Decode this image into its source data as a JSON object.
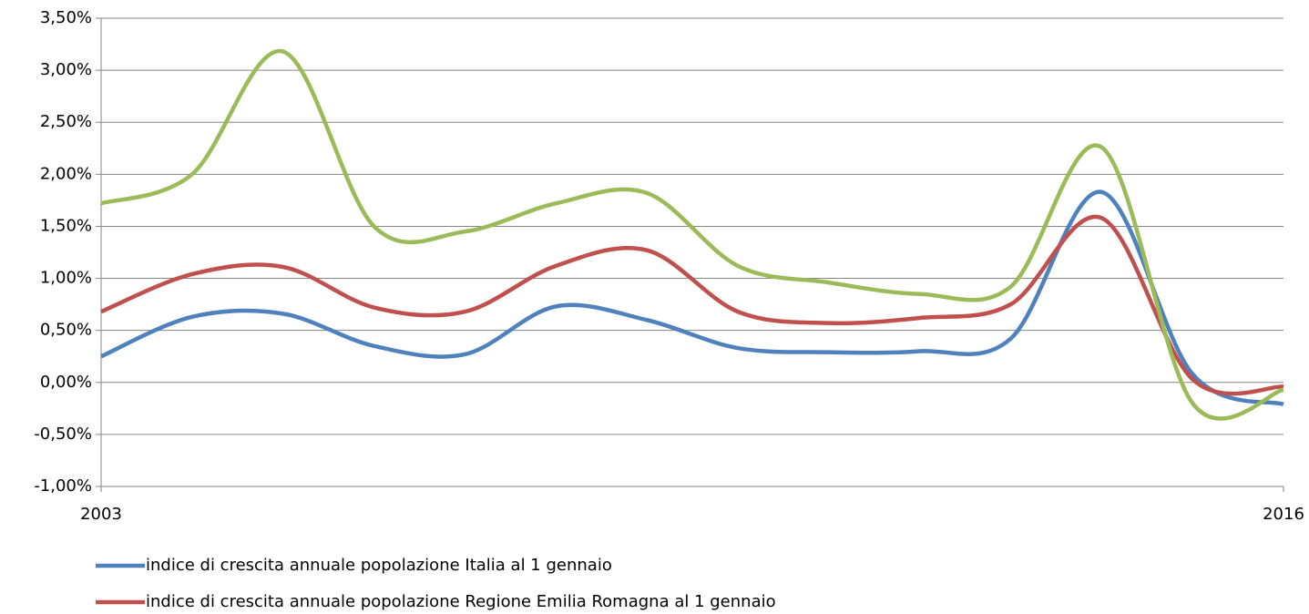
{
  "chart_data": {
    "type": "line",
    "x": [
      2003,
      2004,
      2005,
      2006,
      2007,
      2008,
      2009,
      2010,
      2011,
      2012,
      2013,
      2014,
      2015,
      2016
    ],
    "xlim": [
      2003,
      2016
    ],
    "xticks": [
      2003,
      2016
    ],
    "ylim": [
      -1.0,
      3.5
    ],
    "yticks": [
      {
        "value": -1.0,
        "label": "-1,00%"
      },
      {
        "value": -0.5,
        "label": "-0,50%"
      },
      {
        "value": 0,
        "label": "0,00%"
      },
      {
        "value": 0.5,
        "label": "0,50%"
      },
      {
        "value": 1.0,
        "label": "1,00%"
      },
      {
        "value": 1.5,
        "label": "1,50%"
      },
      {
        "value": 2.0,
        "label": "2,00%"
      },
      {
        "value": 2.5,
        "label": "2,50%"
      },
      {
        "value": 3.0,
        "label": "3,00%"
      },
      {
        "value": 3.5,
        "label": "3,50%"
      }
    ],
    "grid": true,
    "legend": "bottom",
    "series": [
      {
        "name": "indice di crescita annuale popolazione Italia al 1 gennaio",
        "color": "#4f81bd",
        "values": [
          0.25,
          0.63,
          0.66,
          0.35,
          0.27,
          0.73,
          0.6,
          0.33,
          0.29,
          0.3,
          0.42,
          1.83,
          0.08,
          -0.21
        ]
      },
      {
        "name": "indice di crescita annuale popolazione Regione Emilia Romagna al 1 gennaio",
        "color": "#c0504d",
        "values": [
          0.68,
          1.04,
          1.11,
          0.72,
          0.68,
          1.12,
          1.27,
          0.68,
          0.57,
          0.62,
          0.75,
          1.58,
          0.03,
          -0.04
        ]
      },
      {
        "color": "#9bbb59",
        "values": [
          1.72,
          2.0,
          3.18,
          1.5,
          1.45,
          1.72,
          1.82,
          1.12,
          0.96,
          0.85,
          0.92,
          2.26,
          -0.2,
          -0.07
        ]
      }
    ]
  }
}
